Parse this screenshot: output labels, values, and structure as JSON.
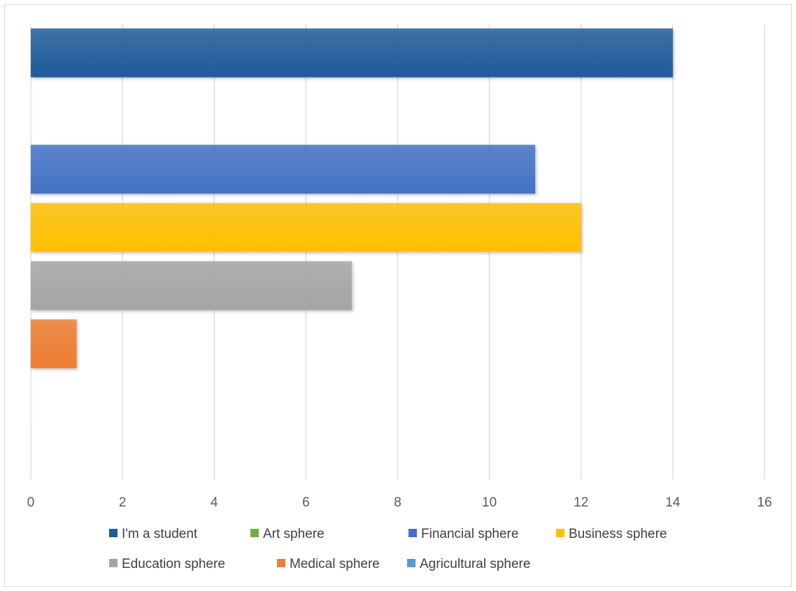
{
  "chart_data": {
    "type": "bar",
    "orientation": "horizontal",
    "categories": [
      "I'm a student",
      "Art sphere",
      "Financial sphere",
      "Business sphere",
      "Education sphere",
      "Medical sphere",
      "Agricultural sphere"
    ],
    "values": [
      14,
      0,
      11,
      12,
      7,
      1,
      0
    ],
    "colors": [
      "#1f5c99",
      "#70ad47",
      "#4472c4",
      "#ffc000",
      "#a5a5a5",
      "#ed7d31",
      "#5b9bd5"
    ],
    "xlim": [
      0,
      16
    ],
    "xticks": [
      0,
      2,
      4,
      6,
      8,
      10,
      12,
      14,
      16
    ],
    "grid": true,
    "legend": {
      "placement": "bottom",
      "entries": [
        "I'm a student",
        "Art sphere",
        "Financial sphere",
        "Business sphere",
        "Education sphere",
        "Medical sphere",
        "Agricultural sphere"
      ]
    },
    "title": "",
    "xlabel": "",
    "ylabel": ""
  }
}
